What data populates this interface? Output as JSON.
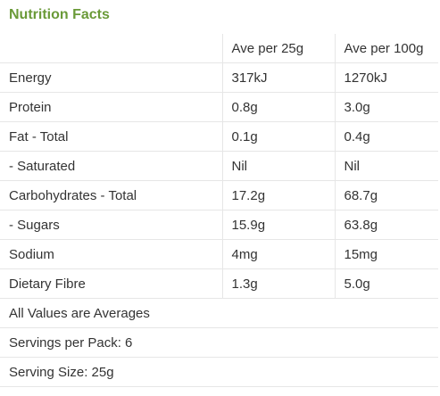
{
  "title": "Nutrition Facts",
  "table": {
    "headers": [
      "",
      "Ave per 25g",
      "Ave per 100g"
    ],
    "rows": [
      [
        "Energy",
        "317kJ",
        "1270kJ"
      ],
      [
        "Protein",
        "0.8g",
        "3.0g"
      ],
      [
        "Fat - Total",
        "0.1g",
        "0.4g"
      ],
      [
        "- Saturated",
        "Nil",
        "Nil"
      ],
      [
        "Carbohydrates - Total",
        "17.2g",
        "68.7g"
      ],
      [
        "- Sugars",
        "15.9g",
        "63.8g"
      ],
      [
        "Sodium",
        "4mg",
        "15mg"
      ],
      [
        "Dietary Fibre",
        "1.3g",
        "5.0g"
      ]
    ]
  },
  "footer": {
    "note": "All Values are Averages",
    "servings_per_pack": "Servings per Pack: 6",
    "serving_size": "Serving Size: 25g"
  },
  "colors": {
    "title": "#6a9a38",
    "text": "#333333",
    "divider": "#e6e6e6"
  }
}
